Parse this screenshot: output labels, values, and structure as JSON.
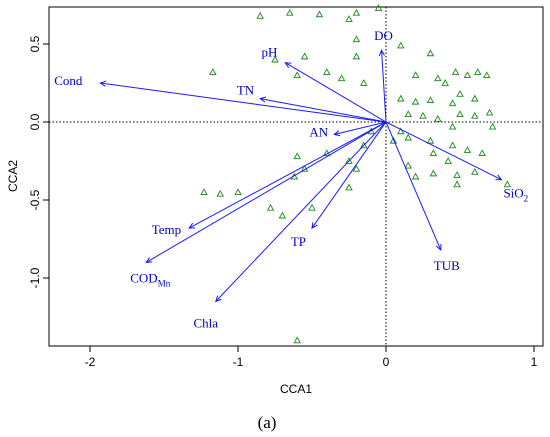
{
  "caption": "(a)",
  "colors": {
    "arrow": "#1a1aff",
    "label": "#0000cc",
    "site": "#1a8a1a"
  },
  "chart_data": {
    "type": "scatter",
    "subtype": "CCA biplot",
    "xlabel": "CCA1",
    "ylabel": "CCA2",
    "xlim": [
      -2.2,
      1.05
    ],
    "ylim": [
      -1.55,
      0.76
    ],
    "xticks": [
      -2,
      -1,
      0,
      1
    ],
    "yticks": [
      0.5,
      0.0,
      -0.5,
      -1.0
    ],
    "reference_lines": {
      "x": 0,
      "y": 0,
      "style": "dotted"
    },
    "arrows": [
      {
        "name": "Cond",
        "x": -1.93,
        "y": 0.25
      },
      {
        "name": "pH",
        "x": -0.68,
        "y": 0.38
      },
      {
        "name": "TN",
        "x": -0.85,
        "y": 0.15
      },
      {
        "name": "DO",
        "x": -0.03,
        "y": 0.46
      },
      {
        "name": "AN",
        "x": -0.35,
        "y": -0.08
      },
      {
        "name": "SiO2",
        "name_main": "SiO",
        "name_sub": "2",
        "x": 0.78,
        "y": -0.37
      },
      {
        "name": "TUB",
        "x": 0.37,
        "y": -0.82
      },
      {
        "name": "TP",
        "x": -0.5,
        "y": -0.68
      },
      {
        "name": "Temp",
        "x": -1.33,
        "y": -0.68
      },
      {
        "name": "CODMn",
        "name_main": "COD",
        "name_sub": "Mn",
        "x": -1.62,
        "y": -0.9
      },
      {
        "name": "Chla",
        "x": -1.15,
        "y": -1.15
      }
    ],
    "sites": [
      [
        -0.85,
        0.68
      ],
      [
        -0.65,
        0.7
      ],
      [
        -0.45,
        0.69
      ],
      [
        -0.25,
        0.66
      ],
      [
        -0.2,
        0.7
      ],
      [
        -0.05,
        0.73
      ],
      [
        -0.2,
        0.53
      ],
      [
        -0.2,
        0.42
      ],
      [
        -0.55,
        0.42
      ],
      [
        -0.75,
        0.4
      ],
      [
        -1.17,
        0.32
      ],
      [
        -0.6,
        0.3
      ],
      [
        -0.4,
        0.32
      ],
      [
        -0.3,
        0.28
      ],
      [
        -0.15,
        0.25
      ],
      [
        0.1,
        0.49
      ],
      [
        0.3,
        0.44
      ],
      [
        0.47,
        0.32
      ],
      [
        0.62,
        0.32
      ],
      [
        0.2,
        0.3
      ],
      [
        0.35,
        0.28
      ],
      [
        0.4,
        0.25
      ],
      [
        0.55,
        0.3
      ],
      [
        0.68,
        0.3
      ],
      [
        0.5,
        0.18
      ],
      [
        0.1,
        0.15
      ],
      [
        0.2,
        0.13
      ],
      [
        0.3,
        0.14
      ],
      [
        0.45,
        0.12
      ],
      [
        0.6,
        0.15
      ],
      [
        0.15,
        0.05
      ],
      [
        0.25,
        0.04
      ],
      [
        0.35,
        0.02
      ],
      [
        0.5,
        0.05
      ],
      [
        0.6,
        0.04
      ],
      [
        0.7,
        0.06
      ],
      [
        0.72,
        -0.03
      ],
      [
        0.45,
        -0.03
      ],
      [
        0.1,
        -0.06
      ],
      [
        0.05,
        -0.12
      ],
      [
        0.15,
        -0.1
      ],
      [
        0.3,
        -0.12
      ],
      [
        0.45,
        -0.15
      ],
      [
        0.32,
        -0.2
      ],
      [
        0.55,
        -0.18
      ],
      [
        0.65,
        -0.2
      ],
      [
        0.42,
        -0.25
      ],
      [
        0.15,
        -0.28
      ],
      [
        0.2,
        -0.35
      ],
      [
        0.32,
        -0.33
      ],
      [
        0.48,
        -0.34
      ],
      [
        0.6,
        -0.32
      ],
      [
        0.48,
        -0.4
      ],
      [
        0.82,
        -0.4
      ],
      [
        -0.25,
        -0.25
      ],
      [
        -0.4,
        -0.2
      ],
      [
        -0.6,
        -0.22
      ],
      [
        -0.55,
        -0.3
      ],
      [
        -0.62,
        -0.35
      ],
      [
        -0.2,
        -0.3
      ],
      [
        -0.15,
        -0.15
      ],
      [
        -0.5,
        -0.55
      ],
      [
        -0.25,
        -0.42
      ],
      [
        -0.7,
        -0.6
      ],
      [
        -1.0,
        -0.45
      ],
      [
        -0.78,
        -0.55
      ],
      [
        -1.23,
        -0.45
      ],
      [
        -1.12,
        -0.46
      ],
      [
        -0.6,
        -1.4
      ],
      [
        -0.1,
        -0.06
      ]
    ]
  }
}
